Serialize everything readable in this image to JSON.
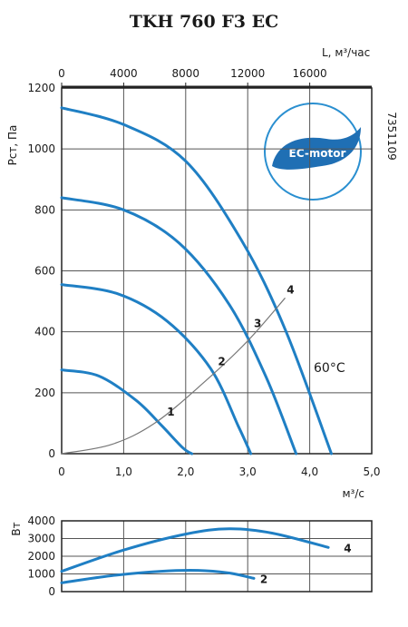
{
  "chart_data": [
    {
      "type": "line",
      "title": "TKH 760 F3 EC",
      "ylabel": "Pст, Па",
      "xlabel_bottom": "м³/с",
      "xlabel_top": "L, м³/час",
      "xlim": [
        0,
        5
      ],
      "ylim": [
        0,
        1200
      ],
      "xlim_top": [
        0,
        20000
      ],
      "xticks": [
        "0",
        "1,0",
        "2,0",
        "3,0",
        "4,0",
        "5,0"
      ],
      "yticks": [
        "0",
        "200",
        "400",
        "600",
        "800",
        "1000",
        "1200"
      ],
      "xticks_top": [
        "0",
        "4000",
        "8000",
        "12000",
        "16000"
      ],
      "grid": true,
      "annotation": "7351109",
      "temperature": "60°C",
      "logo_text": "EC-motor",
      "series": [
        {
          "name": "1",
          "color": "#1f7fc4",
          "x": [
            0,
            0.6,
            1.2,
            1.6,
            1.95,
            2.1
          ],
          "y": [
            275,
            255,
            175,
            95,
            20,
            0
          ]
        },
        {
          "name": "2",
          "color": "#1f7fc4",
          "x": [
            0,
            0.9,
            1.7,
            2.4,
            2.85,
            3.05
          ],
          "y": [
            555,
            525,
            435,
            280,
            90,
            0
          ]
        },
        {
          "name": "3",
          "color": "#1f7fc4",
          "x": [
            0,
            1.0,
            1.9,
            2.7,
            3.3,
            3.78
          ],
          "y": [
            840,
            800,
            690,
            490,
            250,
            0
          ]
        },
        {
          "name": "4",
          "color": "#1f7fc4",
          "x": [
            0,
            1.0,
            2.0,
            2.9,
            3.6,
            4.35
          ],
          "y": [
            1135,
            1080,
            960,
            700,
            410,
            0
          ]
        },
        {
          "name": "system",
          "color": "#777777",
          "x": [
            0,
            0.8,
            1.5,
            2.3,
            3.0,
            3.6
          ],
          "y": [
            0,
            30,
            100,
            235,
            370,
            510
          ]
        }
      ]
    },
    {
      "type": "line",
      "ylabel": "Вт",
      "xlim": [
        0,
        5
      ],
      "ylim": [
        0,
        4000
      ],
      "yticks": [
        "0",
        "1000",
        "2000",
        "3000",
        "4000"
      ],
      "grid": true,
      "series": [
        {
          "name": "4",
          "color": "#1f7fc4",
          "x": [
            0,
            1.0,
            2.0,
            2.7,
            3.4,
            4.3
          ],
          "y": [
            1150,
            2350,
            3250,
            3550,
            3300,
            2500
          ]
        },
        {
          "name": "2",
          "color": "#1f7fc4",
          "x": [
            0,
            0.8,
            1.6,
            2.2,
            2.7,
            3.1
          ],
          "y": [
            500,
            900,
            1150,
            1200,
            1050,
            750
          ]
        }
      ]
    }
  ],
  "curve_labels": [
    {
      "text": "1",
      "x": 1.7,
      "y": 125
    },
    {
      "text": "2",
      "x": 2.52,
      "y": 290
    },
    {
      "text": "3",
      "x": 3.1,
      "y": 415
    },
    {
      "text": "4",
      "x": 3.63,
      "y": 525
    }
  ],
  "power_labels": [
    {
      "text": "4",
      "x": 4.55,
      "y": 2500
    },
    {
      "text": "2",
      "x": 3.2,
      "y": 750
    }
  ]
}
